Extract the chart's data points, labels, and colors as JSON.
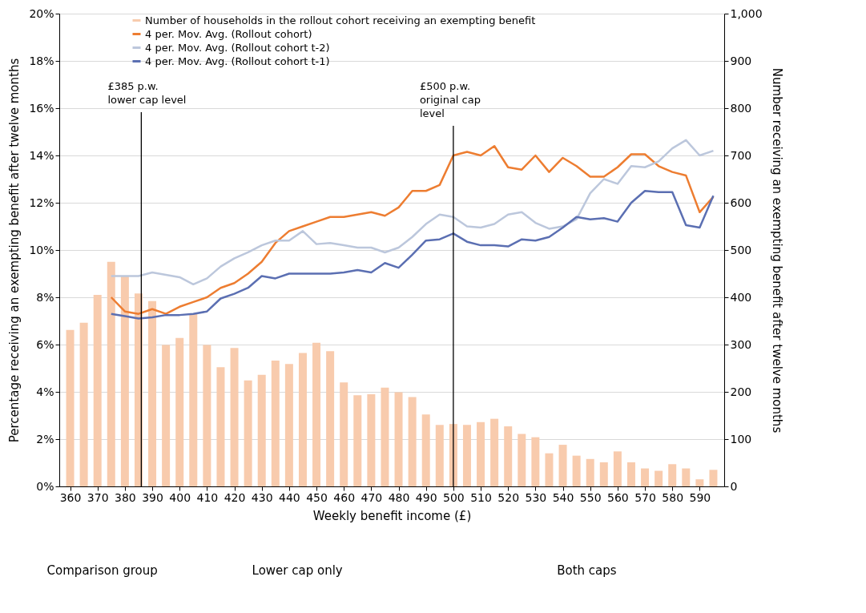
{
  "chart_data": {
    "type": "line",
    "x": [
      360,
      365,
      370,
      375,
      380,
      385,
      390,
      395,
      400,
      405,
      410,
      415,
      420,
      425,
      430,
      435,
      440,
      445,
      450,
      455,
      460,
      465,
      470,
      475,
      480,
      485,
      490,
      495,
      500,
      505,
      510,
      515,
      520,
      525,
      530,
      535,
      540,
      545,
      550,
      555,
      560,
      565,
      570,
      575,
      580,
      585,
      590,
      595
    ],
    "xlabel": "Weekly benefit income (£)",
    "ylabel": "Percentage receiving an exempting benefit after twelve months",
    "y2label": "Number receiving an exempting benefit after twelve months",
    "xlim": [
      357.5,
      597.5
    ],
    "xticks": [
      360,
      370,
      380,
      390,
      400,
      410,
      420,
      430,
      440,
      450,
      460,
      470,
      480,
      490,
      500,
      510,
      520,
      530,
      540,
      550,
      560,
      570,
      580,
      590
    ],
    "ylim": [
      0,
      20
    ],
    "yticks": [
      {
        "value": 0,
        "label": "0%"
      },
      {
        "value": 2,
        "label": "2%"
      },
      {
        "value": 4,
        "label": "4%"
      },
      {
        "value": 6,
        "label": "6%"
      },
      {
        "value": 8,
        "label": "8%"
      },
      {
        "value": 10,
        "label": "10%"
      },
      {
        "value": 12,
        "label": "12%"
      },
      {
        "value": 14,
        "label": "14%"
      },
      {
        "value": 16,
        "label": "16%"
      },
      {
        "value": 18,
        "label": "18%"
      },
      {
        "value": 20,
        "label": "20%"
      }
    ],
    "y2lim": [
      0,
      1000
    ],
    "y2ticks": [
      0,
      100,
      200,
      300,
      400,
      500,
      600,
      700,
      800,
      900,
      {
        "value": 1000,
        "label": "1,000"
      }
    ],
    "grid": "y",
    "legend": "top",
    "series": [
      {
        "name": "Number of households in the rollout cohort receiving an exempting benefit",
        "type": "bar",
        "axis": "y2",
        "color": "#f8cbad",
        "values": [
          331,
          346,
          405,
          475,
          445,
          408,
          392,
          299,
          314,
          365,
          299,
          252,
          293,
          224,
          236,
          266,
          259,
          282,
          304,
          286,
          220,
          193,
          195,
          209,
          199,
          189,
          152,
          130,
          132,
          130,
          136,
          143,
          127,
          111,
          104,
          70,
          88,
          65,
          58,
          51,
          74,
          51,
          38,
          33,
          47,
          38,
          15,
          35
        ]
      },
      {
        "name": "4 per. Mov. Avg. (Rollout cohort)",
        "color": "#ed7d31",
        "values": [
          null,
          null,
          null,
          8.0,
          7.4,
          7.3,
          7.5,
          7.3,
          7.6,
          7.8,
          8.0,
          8.4,
          8.6,
          9.0,
          9.5,
          10.3,
          10.8,
          11.0,
          11.2,
          11.4,
          11.4,
          11.5,
          11.6,
          11.45,
          11.8,
          12.5,
          12.5,
          12.75,
          14.0,
          14.15,
          14.0,
          14.4,
          13.5,
          13.4,
          14.0,
          13.3,
          13.9,
          13.55,
          13.1,
          13.1,
          13.5,
          14.05,
          14.05,
          13.55,
          13.3,
          13.15,
          11.6,
          12.25
        ]
      },
      {
        "name": "4 per. Mov. Avg. (Rollout cohort t-2)",
        "color": "#bcc7dc",
        "values": [
          null,
          null,
          null,
          8.9,
          8.9,
          8.9,
          9.05,
          8.95,
          8.85,
          8.55,
          8.8,
          9.3,
          9.65,
          9.9,
          10.2,
          10.4,
          10.4,
          10.8,
          10.25,
          10.3,
          10.2,
          10.1,
          10.1,
          9.9,
          10.1,
          10.55,
          11.1,
          11.5,
          11.4,
          11.0,
          10.95,
          11.1,
          11.5,
          11.6,
          11.15,
          10.9,
          11.0,
          11.3,
          12.4,
          13.0,
          12.8,
          13.55,
          13.5,
          13.75,
          14.3,
          14.65,
          14.0,
          14.2
        ]
      },
      {
        "name": "4 per. Mov. Avg. (Rollout cohort t-1)",
        "color": "#5b6fb2",
        "values": [
          null,
          null,
          null,
          7.3,
          7.2,
          7.1,
          7.15,
          7.25,
          7.25,
          7.3,
          7.4,
          7.95,
          8.15,
          8.4,
          8.9,
          8.8,
          9.0,
          9.0,
          9.0,
          9.0,
          9.05,
          9.15,
          9.05,
          9.45,
          9.25,
          9.8,
          10.4,
          10.45,
          10.7,
          10.35,
          10.2,
          10.2,
          10.15,
          10.45,
          10.4,
          10.55,
          10.95,
          11.4,
          11.3,
          11.35,
          11.2,
          12.0,
          12.5,
          12.45,
          12.45,
          11.05,
          10.95,
          12.3
        ]
      }
    ],
    "ref_lines": [
      {
        "axis": "x",
        "value": 386,
        "label": "£385 p.w.\nlower cap level",
        "color": "#000000"
      },
      {
        "axis": "x",
        "value": 500,
        "label": "£500 p.w.\noriginal cap\nlevel",
        "color": "#000000"
      }
    ],
    "annotations": [
      "Comparison group",
      "Lower cap only",
      "Both caps"
    ]
  }
}
